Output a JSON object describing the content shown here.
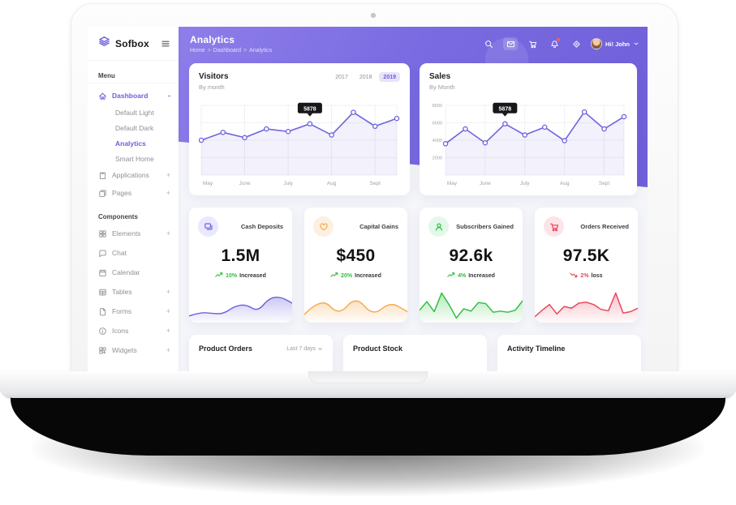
{
  "sidebar": {
    "logo": "Sofbox",
    "menu_label": "Menu",
    "components_label": "Components",
    "menu_items": [
      {
        "label": "Dashboard",
        "icon": "home-icon",
        "active": true,
        "suffix": "-"
      },
      {
        "label": "Default Light",
        "sub": true
      },
      {
        "label": "Default Dark",
        "sub": true
      },
      {
        "label": "Analytics",
        "sub": true,
        "active": true
      },
      {
        "label": "Smart Home",
        "sub": true
      },
      {
        "label": "Applications",
        "icon": "clipboard-icon",
        "suffix": "+"
      },
      {
        "label": "Pages",
        "icon": "pages-icon",
        "suffix": "+"
      }
    ],
    "component_items": [
      {
        "label": "Elements",
        "icon": "grid-icon",
        "suffix": "+"
      },
      {
        "label": "Chat",
        "icon": "chat-icon"
      },
      {
        "label": "Calendar",
        "icon": "calendar-icon"
      },
      {
        "label": "Tables",
        "icon": "table-icon",
        "suffix": "+"
      },
      {
        "label": "Forms",
        "icon": "file-icon",
        "suffix": "+"
      },
      {
        "label": "Icons",
        "icon": "info-icon",
        "suffix": "+"
      },
      {
        "label": "Widgets",
        "icon": "widget-icon",
        "suffix": "+"
      }
    ]
  },
  "header": {
    "title": "Analytics",
    "breadcrumb": [
      "Home",
      "Dashboard",
      "Analytics"
    ],
    "icons": [
      "search-icon",
      "mail-icon",
      "cart-icon",
      "bell-icon",
      "crosshair-icon"
    ],
    "user_greeting": "Hi! John"
  },
  "chart_data": [
    {
      "type": "line",
      "title": "Visitors",
      "subtitle": "By month",
      "years": [
        "2017",
        "2018",
        "2019"
      ],
      "selected_year": "2019",
      "categories": [
        "May",
        "June",
        "July",
        "Aug",
        "Sept"
      ],
      "values": [
        4000,
        4900,
        4300,
        5300,
        5000,
        5878,
        4600,
        7200,
        5600,
        6500
      ],
      "tooltip": {
        "index": 5,
        "label": "5878"
      },
      "ylim": [
        0,
        8000
      ],
      "line_color": "#6e64dd",
      "grid": true
    },
    {
      "type": "line",
      "title": "Sales",
      "subtitle": "By Month",
      "categories": [
        "May",
        "June",
        "July",
        "Aug",
        "Sept"
      ],
      "yticks": [
        "8000",
        "6000",
        "4000",
        "2000"
      ],
      "values": [
        3600,
        5300,
        3700,
        5878,
        4600,
        5500,
        3950,
        7250,
        5300,
        6700
      ],
      "tooltip": {
        "index": 3,
        "label": "5878"
      },
      "ylim": [
        0,
        8000
      ],
      "line_color": "#6e64dd",
      "grid": true
    }
  ],
  "stats": [
    {
      "icon": "message-icon",
      "title": "Cash Deposits",
      "value": "1.5M",
      "trend_pct": "10%",
      "trend_label": "Increased",
      "direction": "up",
      "pct_color": "#2fbf3f",
      "accent": "#6e64dd",
      "icon_bg": "#eae8fc",
      "sparkline": [
        15,
        28,
        24,
        22,
        50,
        55,
        30,
        78,
        82,
        60
      ],
      "spark_style": "smooth"
    },
    {
      "icon": "heart-icon",
      "title": "Capital Gains",
      "value": "$450",
      "trend_pct": "20%",
      "trend_label": "Increased",
      "direction": "up",
      "pct_color": "#2fbf3f",
      "accent": "#f5a94f",
      "icon_bg": "#fdf0e0",
      "sparkline": [
        20,
        82,
        15,
        85,
        14,
        65,
        30
      ],
      "spark_style": "smooth"
    },
    {
      "icon": "user-icon",
      "title": "Subscribers Gained",
      "value": "92.6k",
      "trend_pct": "4%",
      "trend_label": "Increased",
      "direction": "up",
      "pct_color": "#2fbf3f",
      "accent": "#2fbf3f",
      "icon_bg": "#e4f8e9",
      "sparkline": [
        35,
        65,
        30,
        95,
        55,
        8,
        40,
        32,
        62,
        58,
        28,
        32,
        28,
        35,
        68
      ],
      "spark_style": "jagged"
    },
    {
      "icon": "cart-icon",
      "title": "Orders Received",
      "value": "97.5K",
      "trend_pct": "2%",
      "trend_label": "loss",
      "direction": "down",
      "pct_color": "#e8465a",
      "accent": "#e8465a",
      "icon_bg": "#fde4e8",
      "sparkline": [
        12,
        35,
        55,
        22,
        48,
        42,
        60,
        63,
        55,
        38,
        33,
        95,
        25,
        30,
        42
      ],
      "spark_style": "jagged"
    }
  ],
  "bottom_cards": [
    {
      "title": "Product Orders",
      "filter": "Last 7 days"
    },
    {
      "title": "Product Stock"
    },
    {
      "title": "Activity Timeline"
    }
  ],
  "colors": {
    "accent": "#6e64dd",
    "hero_from": "#8e7eea",
    "hero_to": "#6f5fd9",
    "tooltip_bg": "#17171a"
  }
}
